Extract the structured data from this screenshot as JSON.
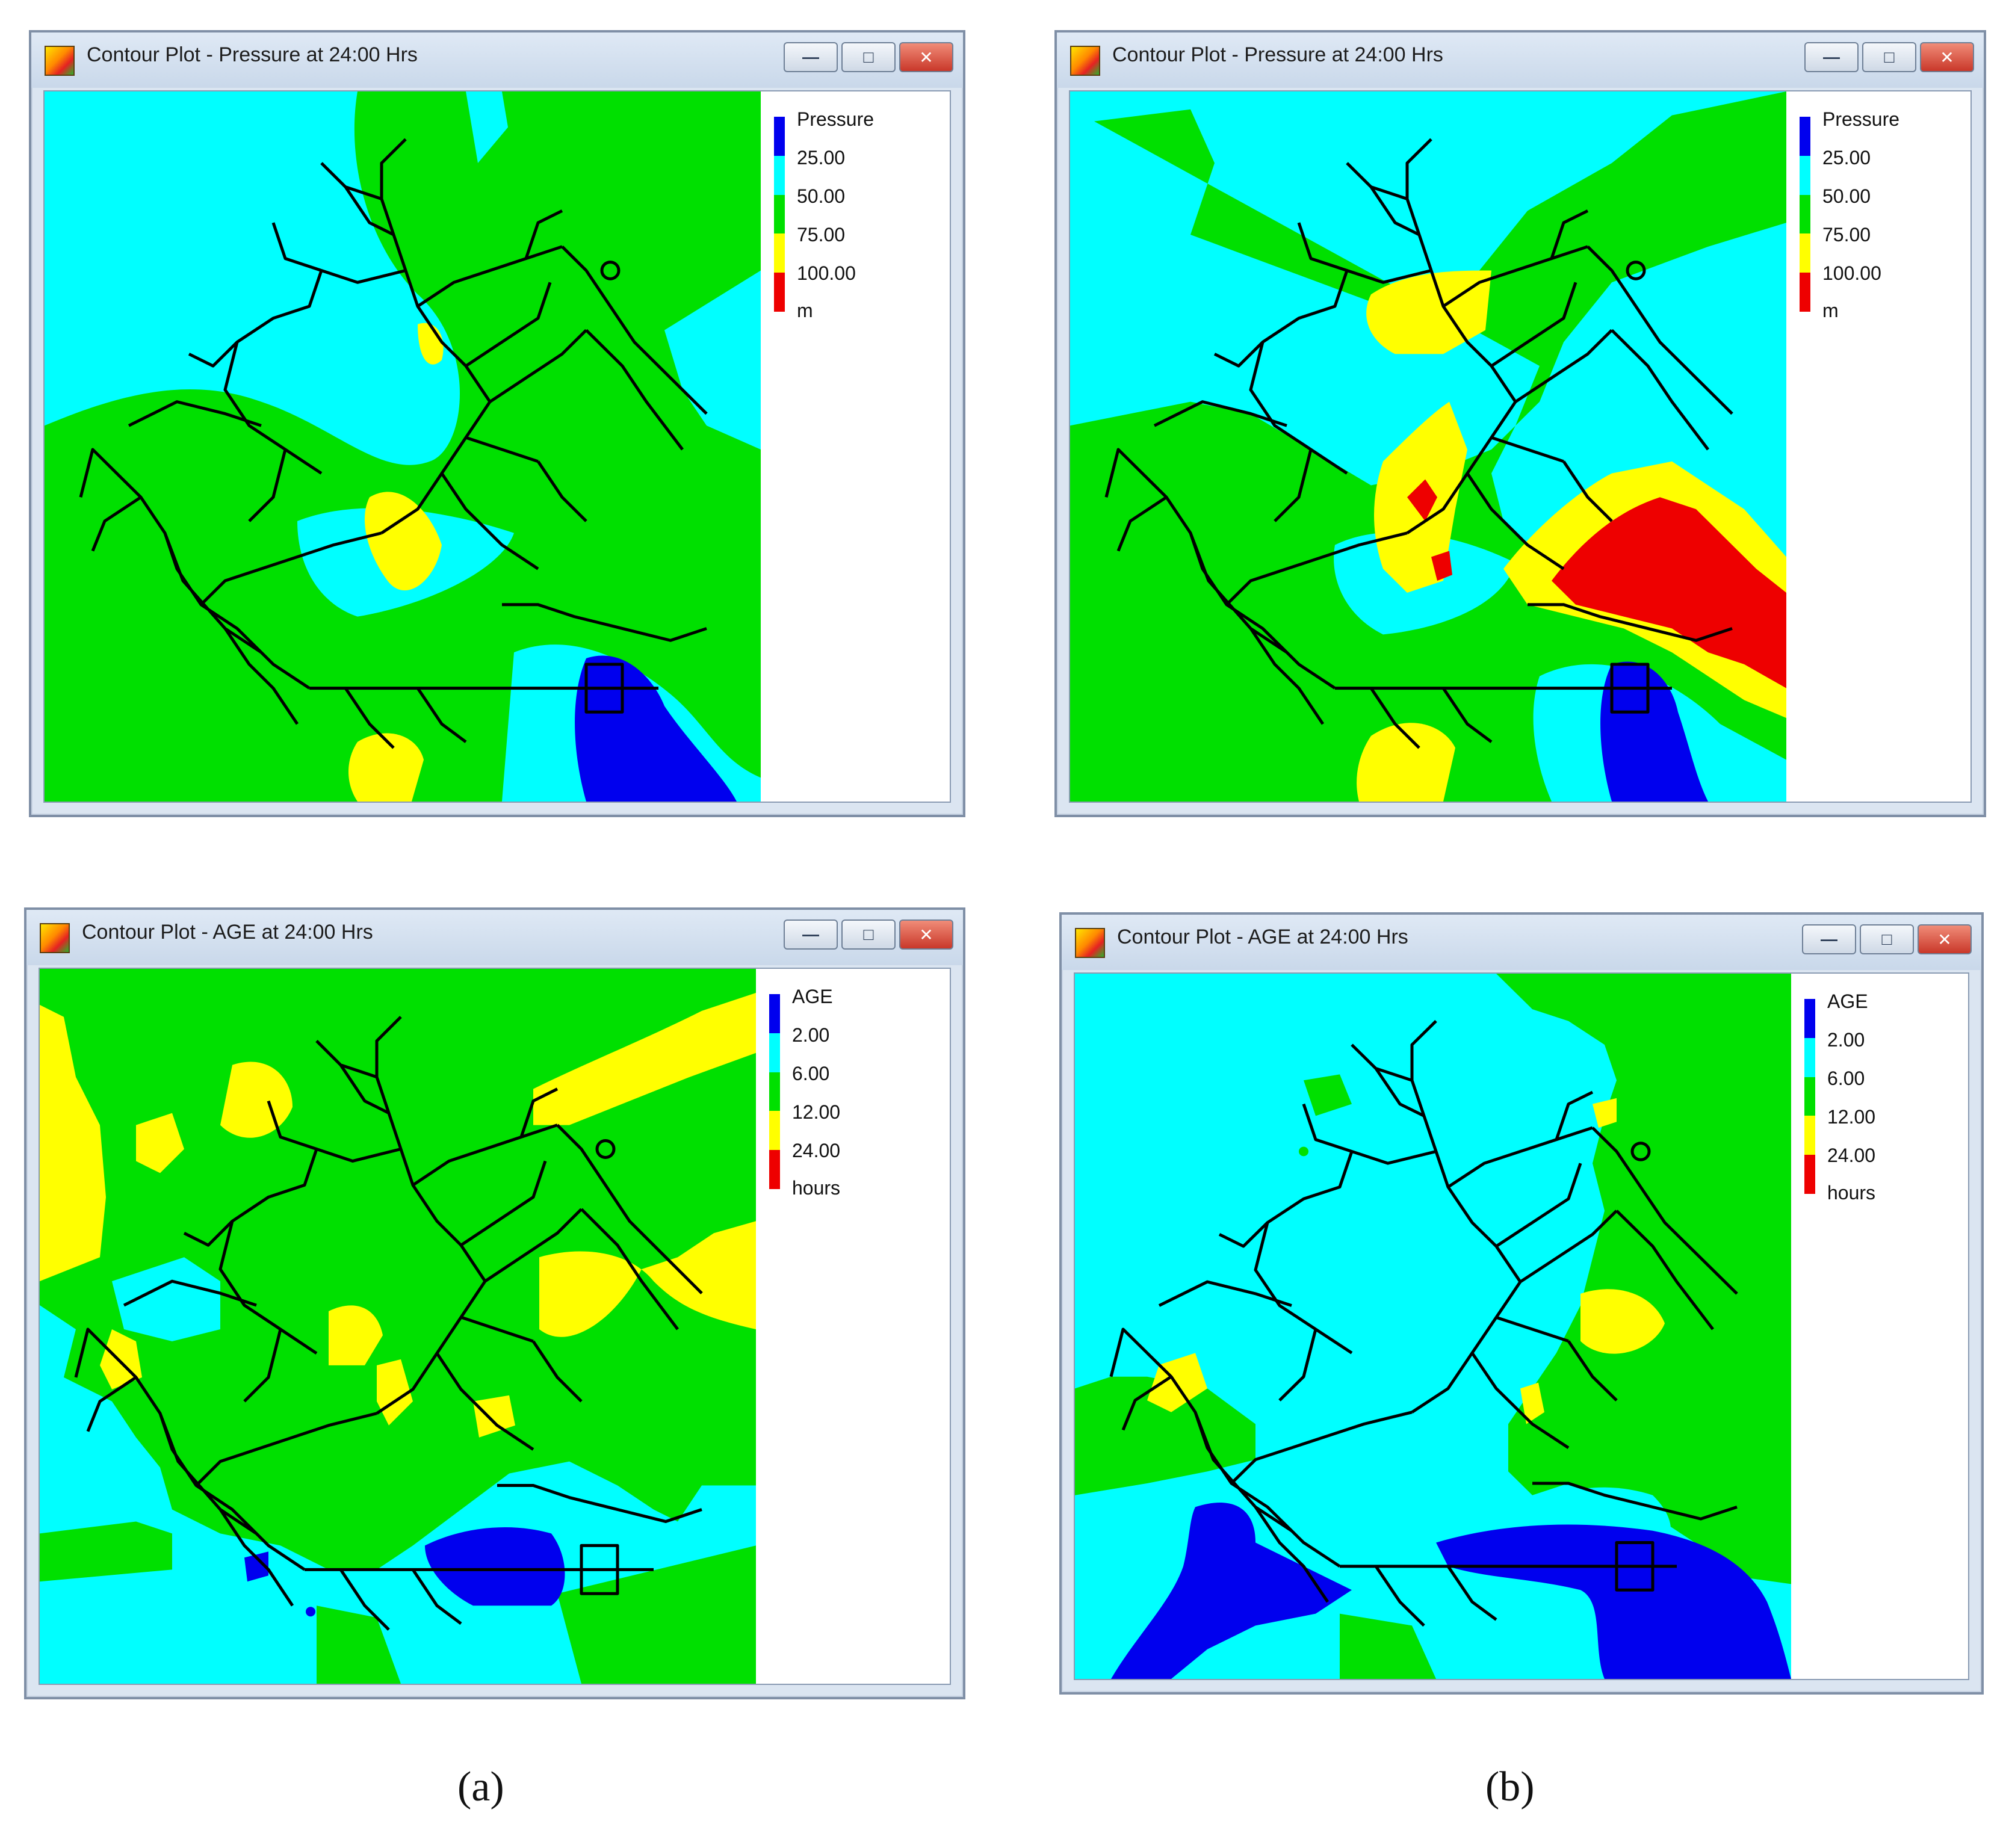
{
  "figure": {
    "captions": [
      "(a)",
      "(b)"
    ]
  },
  "palette": {
    "level1": "#0000ee",
    "level2": "#00ffff",
    "level3": "#00e000",
    "level4": "#ffff00",
    "level5": "#ee0000",
    "network": "#000000"
  },
  "windows": [
    {
      "id": "a-pressure",
      "title": "Contour Plot - Pressure at 24:00 Hrs",
      "legend": {
        "title": "Pressure",
        "levels": [
          "25.00",
          "50.00",
          "75.00",
          "100.00"
        ],
        "unit": "m"
      },
      "field": "pressure"
    },
    {
      "id": "b-pressure",
      "title": "Contour Plot - Pressure at 24:00 Hrs",
      "legend": {
        "title": "Pressure",
        "levels": [
          "25.00",
          "50.00",
          "75.00",
          "100.00"
        ],
        "unit": "m"
      },
      "field": "pressure"
    },
    {
      "id": "a-age",
      "title": "Contour Plot - AGE at 24:00 Hrs",
      "legend": {
        "title": "AGE",
        "levels": [
          "2.00",
          "6.00",
          "12.00",
          "24.00"
        ],
        "unit": "hours"
      },
      "field": "age"
    },
    {
      "id": "b-age",
      "title": "Contour Plot - AGE at 24:00 Hrs",
      "legend": {
        "title": "AGE",
        "levels": [
          "2.00",
          "6.00",
          "12.00",
          "24.00"
        ],
        "unit": "hours"
      },
      "field": "age"
    }
  ],
  "window_buttons": {
    "minimize": "—",
    "maximize": "□",
    "close": "✕"
  }
}
